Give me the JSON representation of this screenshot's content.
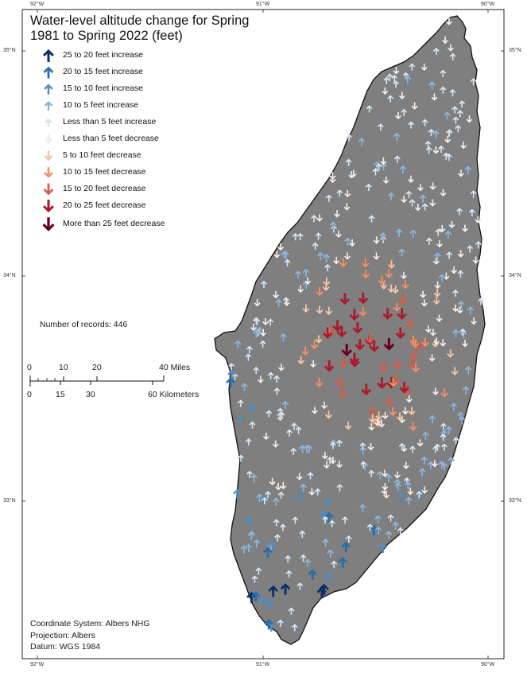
{
  "title_line1": "Water-level altitude change for Spring",
  "title_line2": "1981 to Spring 2022 (feet)",
  "legend": [
    {
      "label": "25 to 20 feet increase",
      "color": "#08306b",
      "dir": "up",
      "size": 1.15
    },
    {
      "label": "20 to 15 feet increase",
      "color": "#2171b5",
      "dir": "up",
      "size": 1.05
    },
    {
      "label": "15 to 10 feet increase",
      "color": "#4f93c9",
      "dir": "up",
      "size": 0.95
    },
    {
      "label": "10 to 5 feet increase",
      "color": "#8db7dc",
      "dir": "up",
      "size": 0.85
    },
    {
      "label": "Less than 5 feet increase",
      "color": "#dbe9f6",
      "dir": "up",
      "size": 0.75
    },
    {
      "label": "Less than 5 feet decrease",
      "color": "#fbf1ec",
      "dir": "down",
      "size": 0.75
    },
    {
      "label": "5 to 10 feet decrease",
      "color": "#f8c8a9",
      "dir": "down",
      "size": 0.85
    },
    {
      "label": "10 to 15 feet decrease",
      "color": "#f0926a",
      "dir": "down",
      "size": 0.95
    },
    {
      "label": "15 to 20 feet decrease",
      "color": "#d6604d",
      "dir": "down",
      "size": 1.05
    },
    {
      "label": "20 to 25 feet decrease",
      "color": "#b2182b",
      "dir": "down",
      "size": 1.15
    },
    {
      "label": "More than 25 feet decrease",
      "color": "#67001f",
      "dir": "down",
      "size": 1.25
    }
  ],
  "records_label": "Number of records: 446",
  "scale": {
    "miles_ticks": [
      "0",
      "10",
      "20",
      "40 Miles"
    ],
    "km_ticks": [
      "0",
      "15",
      "30",
      "60 Kilometers"
    ]
  },
  "graticule": {
    "lon_labels": [
      "92°W",
      "91°W",
      "90°W"
    ],
    "lat_labels": [
      "35°N",
      "34°N",
      "33°N"
    ]
  },
  "coord_system": "Coordinate System: Albers NHG",
  "projection": "Projection: Albers",
  "datum": "Datum: WGS 1984",
  "colors": {
    "region_fill": "#7f7f7f",
    "region_outline": "#111111",
    "frame": "#222222"
  }
}
